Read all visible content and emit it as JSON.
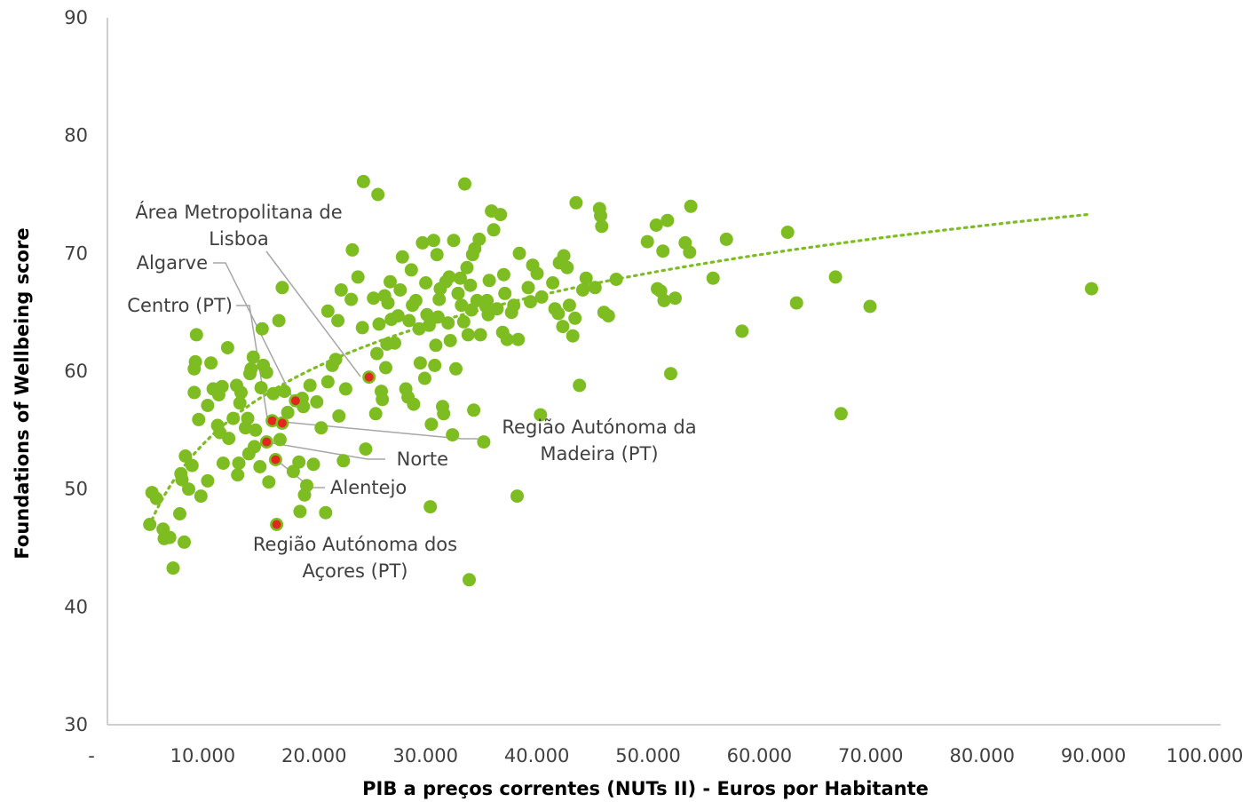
{
  "chart_data": {
    "type": "scatter",
    "title": "",
    "xlabel": "PIB a preços correntes (NUTs II) - Euros por Habitante",
    "ylabel": "Foundations of Wellbeing score",
    "xlim": [
      0,
      100000
    ],
    "ylim": [
      30,
      90
    ],
    "x_ticks": [
      0,
      10000,
      20000,
      30000,
      40000,
      50000,
      60000,
      70000,
      80000,
      90000,
      100000
    ],
    "x_tick_labels": [
      "-",
      "10.000",
      "20.000",
      "30.000",
      "40.000",
      "50.000",
      "60.000",
      "70.000",
      "80.000",
      "90.000",
      "100.000"
    ],
    "y_ticks": [
      30,
      40,
      50,
      60,
      70,
      80,
      90
    ],
    "y_tick_labels": [
      "30",
      "40",
      "50",
      "60",
      "70",
      "80",
      "90"
    ],
    "grid": false,
    "legend": "none",
    "colors": {
      "points": "#7dbd22",
      "highlight": "#e0281c",
      "trendline": "#7dbd22",
      "leader": "#a6a6a6",
      "axis": "#bfbfbf"
    },
    "trendline": {
      "type": "logarithmic",
      "x_start": 4000,
      "x_end": 88000,
      "y_start": 47.4,
      "y_end": 73.3
    },
    "highlighted": [
      {
        "name": "Área Metropolitana de Lisboa",
        "lines": [
          "Área Metropolitana de",
          "Lisboa"
        ],
        "x": 23500,
        "y": 59.5
      },
      {
        "name": "Algarve",
        "lines": [
          "Algarve"
        ],
        "x": 16900,
        "y": 57.5
      },
      {
        "name": "Centro (PT)",
        "lines": [
          "Centro (PT)"
        ],
        "x": 14800,
        "y": 55.8
      },
      {
        "name": "Região Autónoma da Madeira (PT)",
        "lines": [
          "Região Autónoma da",
          "Madeira (PT)"
        ],
        "x": 15700,
        "y": 55.6
      },
      {
        "name": "Norte",
        "lines": [
          "Norte"
        ],
        "x": 14300,
        "y": 54.0
      },
      {
        "name": "Alentejo",
        "lines": [
          "Alentejo"
        ],
        "x": 15100,
        "y": 52.5
      },
      {
        "name": "Região Autónoma dos Açores (PT)",
        "lines": [
          "Região Autónoma dos",
          "Açores (PT)"
        ],
        "x": 15200,
        "y": 47.0
      }
    ],
    "points": [
      [
        3800,
        47.0
      ],
      [
        4000,
        49.7
      ],
      [
        4400,
        49.2
      ],
      [
        5000,
        46.6
      ],
      [
        5100,
        45.8
      ],
      [
        5600,
        45.9
      ],
      [
        5900,
        43.3
      ],
      [
        6500,
        47.9
      ],
      [
        6600,
        51.3
      ],
      [
        6700,
        50.8
      ],
      [
        6900,
        45.5
      ],
      [
        7000,
        52.8
      ],
      [
        7300,
        50.0
      ],
      [
        7600,
        52.0
      ],
      [
        7800,
        60.2
      ],
      [
        7800,
        58.2
      ],
      [
        7900,
        60.8
      ],
      [
        8000,
        63.1
      ],
      [
        8200,
        55.9
      ],
      [
        8400,
        49.4
      ],
      [
        9000,
        50.7
      ],
      [
        9000,
        57.1
      ],
      [
        9300,
        60.7
      ],
      [
        9500,
        58.5
      ],
      [
        9900,
        55.4
      ],
      [
        10000,
        58.0
      ],
      [
        10100,
        54.8
      ],
      [
        10300,
        58.7
      ],
      [
        10400,
        52.2
      ],
      [
        10800,
        62.0
      ],
      [
        10900,
        54.3
      ],
      [
        11300,
        56.0
      ],
      [
        11600,
        58.8
      ],
      [
        11700,
        51.2
      ],
      [
        11800,
        52.2
      ],
      [
        11900,
        57.3
      ],
      [
        12000,
        58.2
      ],
      [
        12400,
        55.2
      ],
      [
        12600,
        56.0
      ],
      [
        12700,
        53.0
      ],
      [
        12800,
        59.8
      ],
      [
        12900,
        60.2
      ],
      [
        13100,
        61.2
      ],
      [
        13200,
        53.6
      ],
      [
        13300,
        55.0
      ],
      [
        13700,
        51.9
      ],
      [
        13800,
        58.6
      ],
      [
        13900,
        63.6
      ],
      [
        14000,
        60.5
      ],
      [
        14300,
        59.9
      ],
      [
        14500,
        50.6
      ],
      [
        14900,
        58.1
      ],
      [
        15400,
        64.3
      ],
      [
        15500,
        54.2
      ],
      [
        15700,
        67.1
      ],
      [
        15900,
        58.3
      ],
      [
        16200,
        56.5
      ],
      [
        16700,
        51.5
      ],
      [
        17200,
        52.3
      ],
      [
        17300,
        48.1
      ],
      [
        17500,
        57.7
      ],
      [
        17600,
        57.0
      ],
      [
        17700,
        49.5
      ],
      [
        17900,
        50.3
      ],
      [
        18200,
        58.8
      ],
      [
        18500,
        52.1
      ],
      [
        18800,
        57.4
      ],
      [
        19200,
        55.2
      ],
      [
        19600,
        48.0
      ],
      [
        19800,
        65.1
      ],
      [
        19800,
        59.1
      ],
      [
        20200,
        60.5
      ],
      [
        20500,
        61.0
      ],
      [
        20700,
        64.3
      ],
      [
        20800,
        56.2
      ],
      [
        21000,
        66.9
      ],
      [
        21200,
        52.4
      ],
      [
        21400,
        58.5
      ],
      [
        21900,
        66.1
      ],
      [
        22000,
        70.3
      ],
      [
        22500,
        68.0
      ],
      [
        22900,
        63.7
      ],
      [
        23000,
        76.1
      ],
      [
        23200,
        53.4
      ],
      [
        23900,
        66.2
      ],
      [
        24100,
        56.4
      ],
      [
        24200,
        61.5
      ],
      [
        24300,
        75.0
      ],
      [
        24400,
        64.0
      ],
      [
        24600,
        58.3
      ],
      [
        24700,
        57.6
      ],
      [
        24900,
        66.4
      ],
      [
        25000,
        60.3
      ],
      [
        25100,
        62.3
      ],
      [
        25200,
        65.8
      ],
      [
        25400,
        67.6
      ],
      [
        25500,
        64.4
      ],
      [
        25800,
        62.4
      ],
      [
        26100,
        64.7
      ],
      [
        26300,
        66.9
      ],
      [
        26500,
        69.7
      ],
      [
        26800,
        58.5
      ],
      [
        27000,
        57.8
      ],
      [
        27100,
        64.3
      ],
      [
        27300,
        68.6
      ],
      [
        27400,
        65.6
      ],
      [
        27500,
        57.2
      ],
      [
        27700,
        66.0
      ],
      [
        28000,
        63.6
      ],
      [
        28100,
        60.7
      ],
      [
        28300,
        70.9
      ],
      [
        28500,
        59.4
      ],
      [
        28600,
        67.5
      ],
      [
        28700,
        64.8
      ],
      [
        28900,
        63.9
      ],
      [
        29000,
        48.5
      ],
      [
        29100,
        55.5
      ],
      [
        29300,
        71.1
      ],
      [
        29400,
        60.5
      ],
      [
        29500,
        62.2
      ],
      [
        29600,
        69.9
      ],
      [
        29700,
        64.6
      ],
      [
        29800,
        66.1
      ],
      [
        29900,
        67.0
      ],
      [
        30100,
        57.0
      ],
      [
        30200,
        56.4
      ],
      [
        30400,
        67.6
      ],
      [
        30600,
        64.1
      ],
      [
        30700,
        68.0
      ],
      [
        30800,
        62.6
      ],
      [
        31000,
        54.6
      ],
      [
        31100,
        71.1
      ],
      [
        31300,
        60.2
      ],
      [
        31500,
        66.6
      ],
      [
        31700,
        67.9
      ],
      [
        31800,
        65.6
      ],
      [
        32000,
        64.2
      ],
      [
        32100,
        75.9
      ],
      [
        32300,
        68.8
      ],
      [
        32400,
        63.1
      ],
      [
        32500,
        42.3
      ],
      [
        32600,
        67.3
      ],
      [
        32700,
        65.2
      ],
      [
        32800,
        69.9
      ],
      [
        32900,
        56.7
      ],
      [
        33000,
        70.4
      ],
      [
        33200,
        66.0
      ],
      [
        33400,
        71.2
      ],
      [
        33500,
        63.1
      ],
      [
        33800,
        54.0
      ],
      [
        34000,
        65.5
      ],
      [
        34100,
        66.0
      ],
      [
        34200,
        64.8
      ],
      [
        34300,
        67.7
      ],
      [
        34500,
        73.6
      ],
      [
        34700,
        72.0
      ],
      [
        35000,
        65.3
      ],
      [
        35300,
        73.3
      ],
      [
        35500,
        63.3
      ],
      [
        35600,
        68.2
      ],
      [
        35700,
        66.6
      ],
      [
        35900,
        62.7
      ],
      [
        36300,
        65.0
      ],
      [
        36500,
        65.6
      ],
      [
        36800,
        49.4
      ],
      [
        36900,
        62.7
      ],
      [
        37000,
        70.0
      ],
      [
        37800,
        67.1
      ],
      [
        38000,
        65.9
      ],
      [
        38200,
        69.0
      ],
      [
        38600,
        68.3
      ],
      [
        38900,
        56.3
      ],
      [
        39000,
        66.3
      ],
      [
        40000,
        67.5
      ],
      [
        40200,
        65.3
      ],
      [
        40500,
        64.9
      ],
      [
        40600,
        69.2
      ],
      [
        40900,
        63.8
      ],
      [
        41000,
        69.8
      ],
      [
        41300,
        68.8
      ],
      [
        41500,
        65.6
      ],
      [
        41800,
        63.0
      ],
      [
        42000,
        64.5
      ],
      [
        42100,
        74.3
      ],
      [
        42400,
        58.8
      ],
      [
        42700,
        66.9
      ],
      [
        43000,
        67.9
      ],
      [
        43800,
        67.1
      ],
      [
        44200,
        73.8
      ],
      [
        44300,
        73.2
      ],
      [
        44400,
        72.3
      ],
      [
        44600,
        65.0
      ],
      [
        45000,
        64.7
      ],
      [
        45700,
        67.8
      ],
      [
        48500,
        71.0
      ],
      [
        49300,
        72.4
      ],
      [
        49400,
        67.0
      ],
      [
        49700,
        66.8
      ],
      [
        49900,
        70.2
      ],
      [
        50000,
        66.0
      ],
      [
        50300,
        72.8
      ],
      [
        50600,
        59.8
      ],
      [
        51000,
        66.2
      ],
      [
        51900,
        70.9
      ],
      [
        52300,
        70.1
      ],
      [
        52400,
        74.0
      ],
      [
        54400,
        67.9
      ],
      [
        55600,
        71.2
      ],
      [
        57000,
        63.4
      ],
      [
        61100,
        71.8
      ],
      [
        61900,
        65.8
      ],
      [
        65400,
        68.0
      ],
      [
        65900,
        56.4
      ],
      [
        68500,
        65.5
      ],
      [
        88400,
        67.0
      ]
    ]
  }
}
